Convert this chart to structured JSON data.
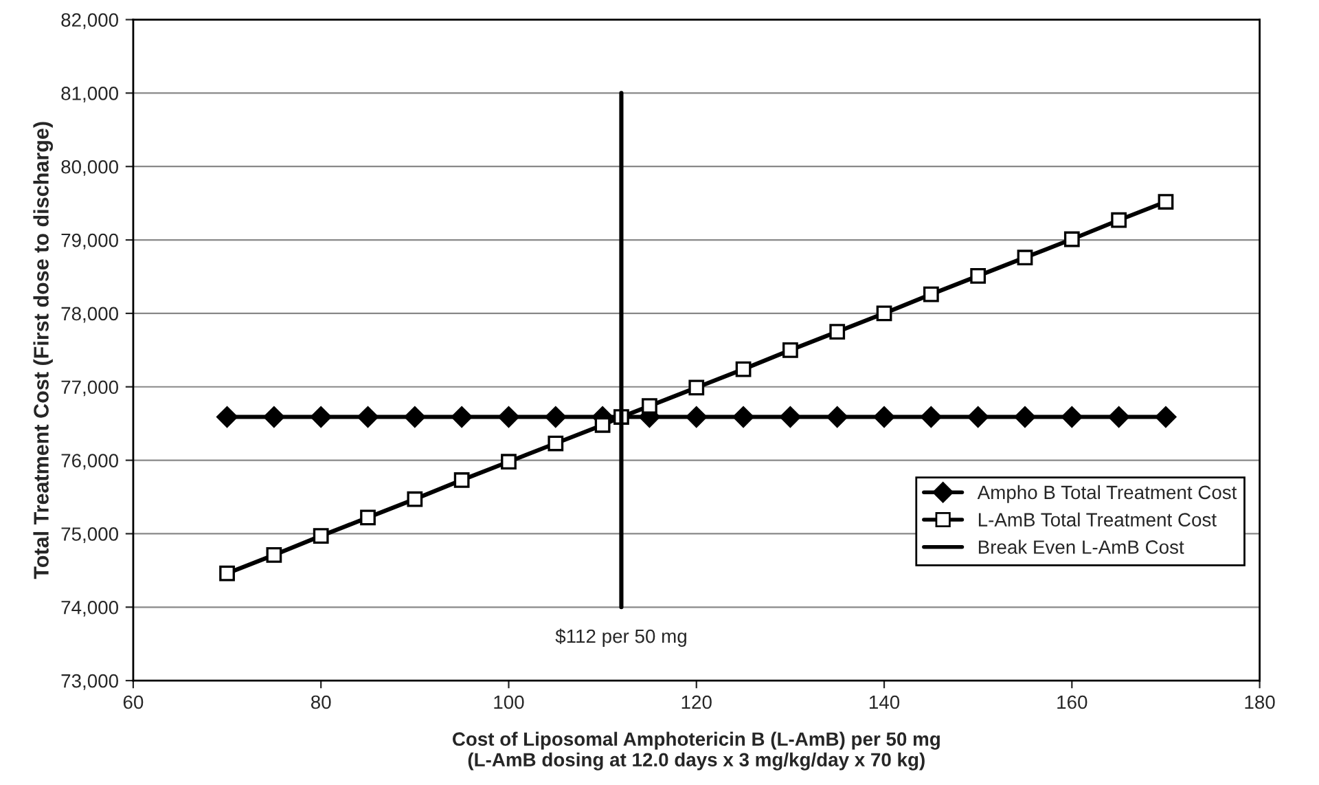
{
  "chart_data": {
    "type": "line",
    "xlabel": "Cost of Liposomal Amphotericin B (L-AmB) per 50 mg\n(L-AmB dosing at 12.0 days x 3 mg/kg/day x 70 kg)",
    "ylabel": "Total Treatment Cost (First dose to discharge)",
    "series": [
      {
        "name": "Ampho B Total Treatment Cost",
        "color": "#000000",
        "marker": "diamond",
        "x": [
          70,
          75,
          80,
          85,
          90,
          95,
          100,
          105,
          110,
          115,
          120,
          125,
          130,
          135,
          140,
          145,
          150,
          155,
          160,
          165,
          170
        ],
        "values": [
          76590,
          76590,
          76590,
          76590,
          76590,
          76590,
          76590,
          76590,
          76590,
          76590,
          76590,
          76590,
          76590,
          76590,
          76590,
          76590,
          76590,
          76590,
          76590,
          76590,
          76590
        ]
      },
      {
        "name": "L-AmB Total Treatment Cost",
        "color": "#000000",
        "marker": "square",
        "x": [
          70,
          75,
          80,
          85,
          90,
          95,
          100,
          105,
          110,
          112,
          115,
          120,
          125,
          130,
          135,
          140,
          145,
          150,
          155,
          160,
          165,
          170
        ],
        "values": [
          74460,
          74710,
          74970,
          75220,
          75470,
          75730,
          75980,
          76230,
          76480,
          76590,
          76740,
          76990,
          77240,
          77500,
          77750,
          78000,
          78260,
          78510,
          78760,
          79010,
          79270,
          79520
        ]
      },
      {
        "name": "Break Even L-AmB Cost",
        "color": "#000000",
        "marker": "none",
        "x": [
          112,
          112
        ],
        "values": [
          74000,
          81000
        ]
      }
    ],
    "annotations": [
      {
        "text": "$112 per 50 mg",
        "x": 112,
        "y": 74000
      }
    ],
    "xlim": [
      60,
      180
    ],
    "xticks": [
      60,
      80,
      100,
      120,
      140,
      160,
      180
    ],
    "ylim": [
      73000,
      82000
    ],
    "yticks": [
      {
        "value": 73000,
        "label": "73,000"
      },
      {
        "value": 74000,
        "label": "74,000"
      },
      {
        "value": 75000,
        "label": "75,000"
      },
      {
        "value": 76000,
        "label": "76,000"
      },
      {
        "value": 77000,
        "label": "77,000"
      },
      {
        "value": 78000,
        "label": "78,000"
      },
      {
        "value": 79000,
        "label": "79,000"
      },
      {
        "value": 80000,
        "label": "80,000"
      },
      {
        "value": 81000,
        "label": "81,000"
      },
      {
        "value": 82000,
        "label": "82,000"
      }
    ],
    "grid": "y",
    "legend": "bottom right",
    "line_style": "solid"
  }
}
